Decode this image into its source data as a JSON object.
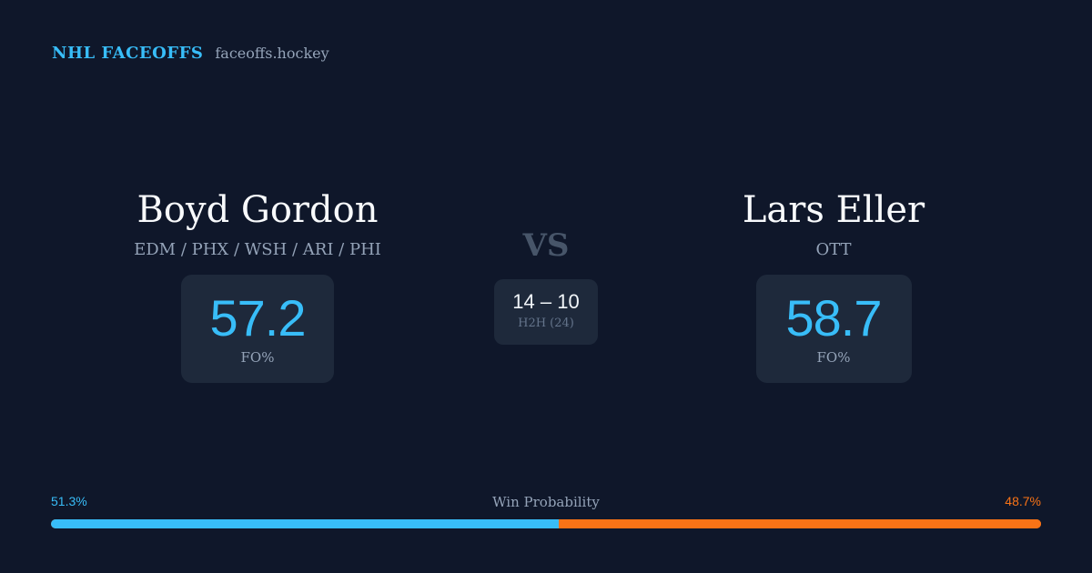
{
  "brand": {
    "name": "NHL FACEOFFS",
    "url": "faceoffs.hockey"
  },
  "player1": {
    "name": "Boyd Gordon",
    "teams": "EDM / PHX / WSH / ARI / PHI",
    "fo_pct": "57.2",
    "fo_label": "FO%"
  },
  "player2": {
    "name": "Lars Eller",
    "teams": "OTT",
    "fo_pct": "58.7",
    "fo_label": "FO%"
  },
  "vs_label": "VS",
  "h2h": {
    "score": "14 – 10",
    "label": "H2H (24)"
  },
  "win_probability": {
    "title": "Win Probability",
    "left_label": "51.3%",
    "right_label": "48.7%",
    "left_value": 51.3,
    "right_value": 48.7
  },
  "colors": {
    "background": "#0f172a",
    "card": "#1e293b",
    "accent_blue": "#38bdf8",
    "accent_orange": "#f97316",
    "muted_text": "#94a3b8",
    "name_text": "#f8fafc"
  }
}
